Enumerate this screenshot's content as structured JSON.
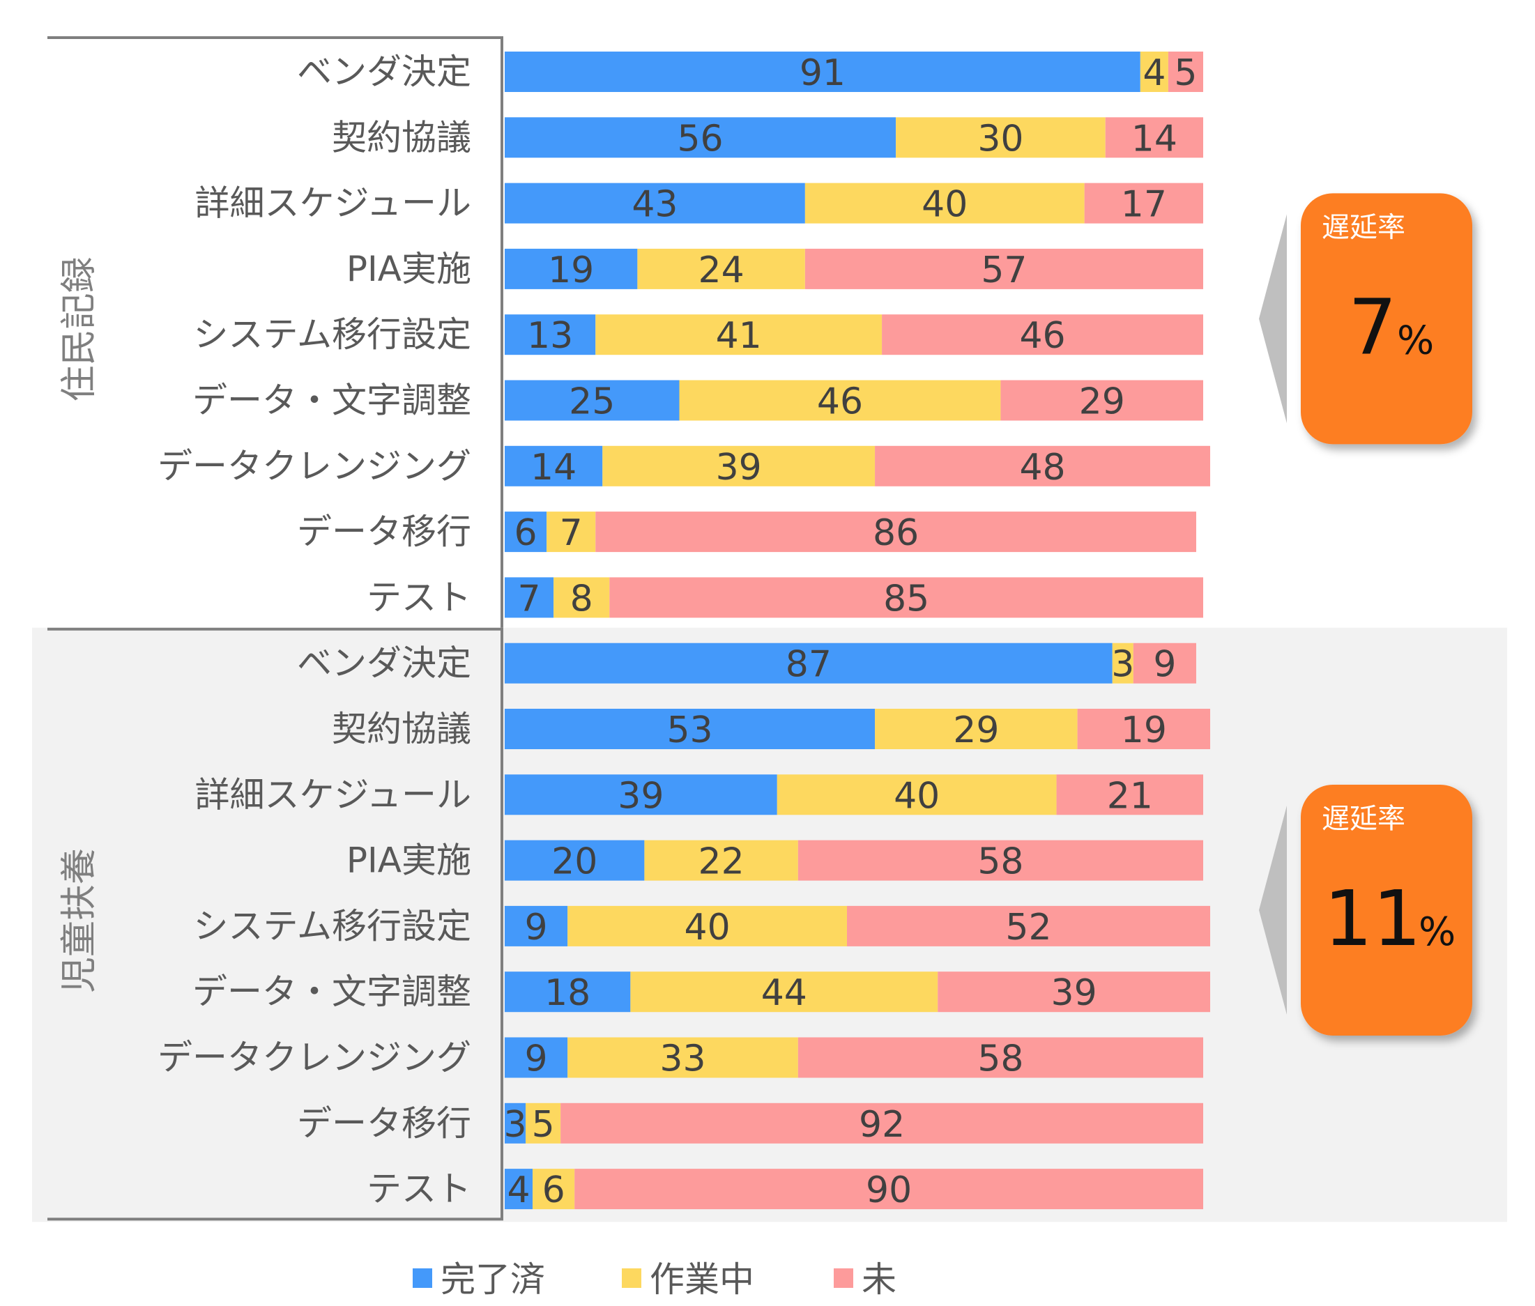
{
  "chart_data": {
    "type": "bar",
    "orientation": "horizontal",
    "stacked": true,
    "xlim": [
      0,
      100
    ],
    "grid": false,
    "legend_position": "bottom",
    "series": [
      {
        "name": "完了済",
        "color": "#4499fa"
      },
      {
        "name": "作業中",
        "color": "#fdd85f"
      },
      {
        "name": "未",
        "color": "#fd9b9b"
      }
    ],
    "groups": [
      {
        "label": "住民記録",
        "categories": [
          "ベンダ決定",
          "契約協議",
          "詳細スケジュール",
          "PIA実施",
          "システム移行設定",
          "データ・文字調整",
          "データクレンジング",
          "データ移行",
          "テスト"
        ],
        "values": [
          [
            91,
            4,
            5
          ],
          [
            56,
            30,
            14
          ],
          [
            43,
            40,
            17
          ],
          [
            19,
            24,
            57
          ],
          [
            13,
            41,
            46
          ],
          [
            25,
            46,
            29
          ],
          [
            14,
            39,
            48
          ],
          [
            6,
            7,
            86
          ],
          [
            7,
            8,
            85
          ]
        ],
        "callout": {
          "title": "遅延率",
          "value": "7",
          "unit": "%"
        }
      },
      {
        "label": "児童扶養",
        "categories": [
          "ベンダ決定",
          "契約協議",
          "詳細スケジュール",
          "PIA実施",
          "システム移行設定",
          "データ・文字調整",
          "データクレンジング",
          "データ移行",
          "テスト"
        ],
        "values": [
          [
            87,
            3,
            9
          ],
          [
            53,
            29,
            19
          ],
          [
            39,
            40,
            21
          ],
          [
            20,
            22,
            58
          ],
          [
            9,
            40,
            52
          ],
          [
            18,
            44,
            39
          ],
          [
            9,
            33,
            58
          ],
          [
            3,
            5,
            92
          ],
          [
            4,
            6,
            90
          ]
        ],
        "callout": {
          "title": "遅延率",
          "value": "11",
          "unit": "%"
        }
      }
    ]
  }
}
